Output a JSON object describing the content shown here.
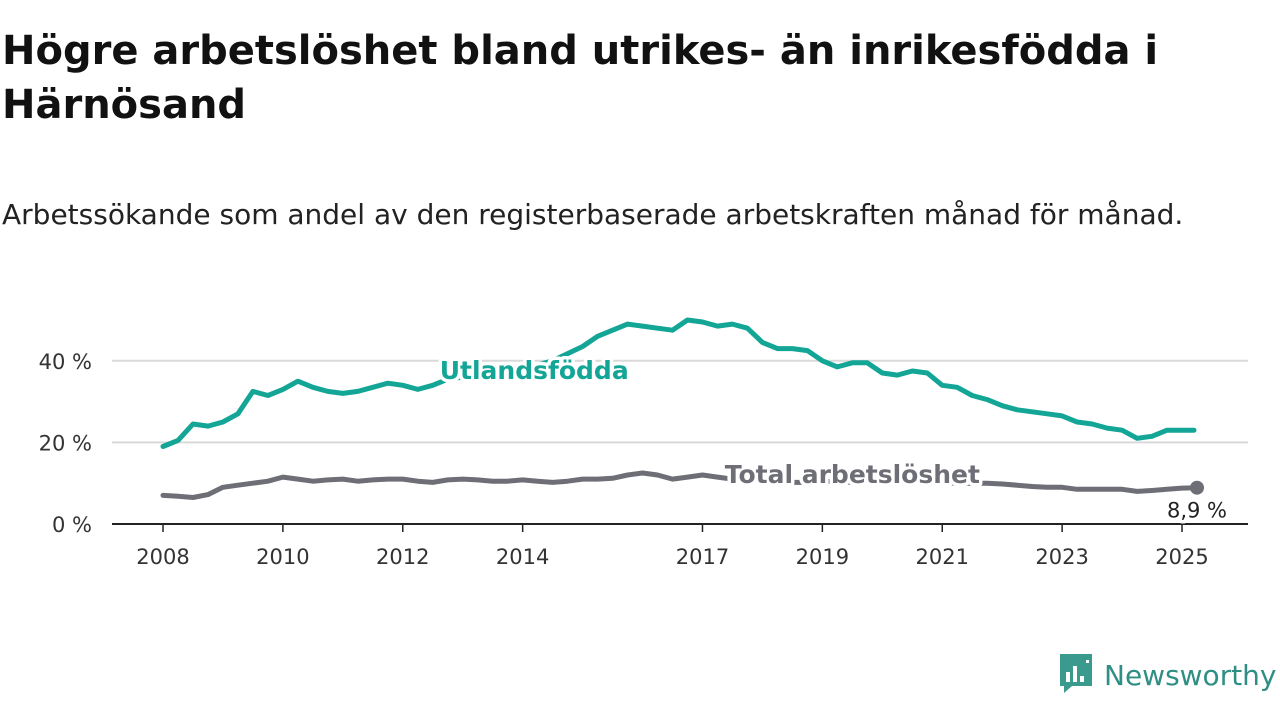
{
  "title": "Högre arbetslöshet bland utrikes- än inrikesfödda i Härnösand",
  "subtitle": "Arbetssökande som andel av den registerbaserade arbetskraften månad för månad.",
  "brand": {
    "name": "Newsworthy",
    "icon": "newsworthy-logo-icon",
    "color": "#3a9a8e"
  },
  "colors": {
    "foreign_born": "#13a596",
    "total": "#6e6e76",
    "grid": "#d9d9d9",
    "axis": "#222222"
  },
  "chart_data": {
    "type": "line",
    "title": "Högre arbetslöshet bland utrikes- än inrikesfödda i Härnösand",
    "subtitle": "Arbetssökande som andel av den registerbaserade arbetskraften månad för månad.",
    "xlabel": "",
    "ylabel": "",
    "x_range": [
      2008.0,
      2025.25
    ],
    "ylim": [
      0,
      50
    ],
    "y_ticks": [
      0,
      20,
      40
    ],
    "y_tick_labels": [
      "0 %",
      "20 %",
      "40 %"
    ],
    "x_ticks": [
      2008,
      2010,
      2012,
      2014,
      2017,
      2019,
      2021,
      2023,
      2025
    ],
    "x_tick_labels": [
      "2008",
      "2010",
      "2012",
      "2014",
      "2017",
      "2019",
      "2021",
      "2023",
      "2025"
    ],
    "grid": true,
    "legend": "inline labels",
    "series": [
      {
        "name": "Utlandsfödda",
        "color": "#13a596",
        "points": [
          [
            2008.0,
            19.0
          ],
          [
            2008.25,
            20.5
          ],
          [
            2008.5,
            24.5
          ],
          [
            2008.75,
            24.0
          ],
          [
            2009.0,
            25.0
          ],
          [
            2009.25,
            27.0
          ],
          [
            2009.5,
            32.5
          ],
          [
            2009.75,
            31.5
          ],
          [
            2010.0,
            33.0
          ],
          [
            2010.25,
            35.0
          ],
          [
            2010.5,
            33.5
          ],
          [
            2010.75,
            32.5
          ],
          [
            2011.0,
            32.0
          ],
          [
            2011.25,
            32.5
          ],
          [
            2011.5,
            33.5
          ],
          [
            2011.75,
            34.5
          ],
          [
            2012.0,
            34.0
          ],
          [
            2012.25,
            33.0
          ],
          [
            2012.5,
            34.0
          ],
          [
            2012.75,
            35.5
          ],
          [
            2013.0,
            36.0
          ],
          [
            2013.5,
            37.0
          ],
          [
            2014.0,
            38.0
          ],
          [
            2014.5,
            40.0
          ],
          [
            2015.0,
            43.5
          ],
          [
            2015.25,
            46.0
          ],
          [
            2015.5,
            47.5
          ],
          [
            2015.75,
            49.0
          ],
          [
            2016.0,
            48.5
          ],
          [
            2016.25,
            48.0
          ],
          [
            2016.5,
            47.5
          ],
          [
            2016.75,
            50.0
          ],
          [
            2017.0,
            49.5
          ],
          [
            2017.25,
            48.5
          ],
          [
            2017.5,
            49.0
          ],
          [
            2017.75,
            48.0
          ],
          [
            2018.0,
            44.5
          ],
          [
            2018.25,
            43.0
          ],
          [
            2018.5,
            43.0
          ],
          [
            2018.75,
            42.5
          ],
          [
            2019.0,
            40.0
          ],
          [
            2019.25,
            38.5
          ],
          [
            2019.5,
            39.5
          ],
          [
            2019.75,
            39.5
          ],
          [
            2020.0,
            37.0
          ],
          [
            2020.25,
            36.5
          ],
          [
            2020.5,
            37.5
          ],
          [
            2020.75,
            37.0
          ],
          [
            2021.0,
            34.0
          ],
          [
            2021.25,
            33.5
          ],
          [
            2021.5,
            31.5
          ],
          [
            2021.75,
            30.5
          ],
          [
            2022.0,
            29.0
          ],
          [
            2022.25,
            28.0
          ],
          [
            2022.5,
            27.5
          ],
          [
            2022.75,
            27.0
          ],
          [
            2023.0,
            26.5
          ],
          [
            2023.25,
            25.0
          ],
          [
            2023.5,
            24.5
          ],
          [
            2023.75,
            23.5
          ],
          [
            2024.0,
            23.0
          ],
          [
            2024.25,
            21.0
          ],
          [
            2024.5,
            21.5
          ],
          [
            2024.75,
            23.0
          ],
          [
            2025.0,
            23.0
          ],
          [
            2025.2,
            23.0
          ]
        ]
      },
      {
        "name": "Total arbetslöshet",
        "color": "#6e6e76",
        "points": [
          [
            2008.0,
            7.0
          ],
          [
            2008.25,
            6.8
          ],
          [
            2008.5,
            6.5
          ],
          [
            2008.75,
            7.2
          ],
          [
            2009.0,
            9.0
          ],
          [
            2009.25,
            9.5
          ],
          [
            2009.5,
            10.0
          ],
          [
            2009.75,
            10.5
          ],
          [
            2010.0,
            11.5
          ],
          [
            2010.25,
            11.0
          ],
          [
            2010.5,
            10.5
          ],
          [
            2010.75,
            10.8
          ],
          [
            2011.0,
            11.0
          ],
          [
            2011.25,
            10.5
          ],
          [
            2011.5,
            10.8
          ],
          [
            2011.75,
            11.0
          ],
          [
            2012.0,
            11.0
          ],
          [
            2012.25,
            10.5
          ],
          [
            2012.5,
            10.2
          ],
          [
            2012.75,
            10.8
          ],
          [
            2013.0,
            11.0
          ],
          [
            2013.25,
            10.8
          ],
          [
            2013.5,
            10.5
          ],
          [
            2013.75,
            10.5
          ],
          [
            2014.0,
            10.8
          ],
          [
            2014.25,
            10.5
          ],
          [
            2014.5,
            10.2
          ],
          [
            2014.75,
            10.5
          ],
          [
            2015.0,
            11.0
          ],
          [
            2015.25,
            11.0
          ],
          [
            2015.5,
            11.2
          ],
          [
            2015.75,
            12.0
          ],
          [
            2016.0,
            12.5
          ],
          [
            2016.25,
            12.0
          ],
          [
            2016.5,
            11.0
          ],
          [
            2016.75,
            11.5
          ],
          [
            2017.0,
            12.0
          ],
          [
            2017.25,
            11.5
          ],
          [
            2017.5,
            11.0
          ],
          [
            2017.75,
            10.8
          ],
          [
            2018.0,
            10.5
          ],
          [
            2018.25,
            10.5
          ],
          [
            2018.5,
            10.2
          ],
          [
            2018.75,
            10.2
          ],
          [
            2019.0,
            10.5
          ],
          [
            2019.25,
            10.5
          ],
          [
            2019.5,
            10.2
          ],
          [
            2019.75,
            10.5
          ],
          [
            2020.0,
            10.5
          ],
          [
            2020.25,
            10.2
          ],
          [
            2020.5,
            10.5
          ],
          [
            2020.75,
            10.5
          ],
          [
            2021.0,
            10.2
          ],
          [
            2021.25,
            10.0
          ],
          [
            2021.5,
            10.0
          ],
          [
            2021.75,
            10.0
          ],
          [
            2022.0,
            9.8
          ],
          [
            2022.25,
            9.5
          ],
          [
            2022.5,
            9.2
          ],
          [
            2022.75,
            9.0
          ],
          [
            2023.0,
            9.0
          ],
          [
            2023.25,
            8.5
          ],
          [
            2023.5,
            8.5
          ],
          [
            2023.75,
            8.5
          ],
          [
            2024.0,
            8.5
          ],
          [
            2024.25,
            8.0
          ],
          [
            2024.5,
            8.2
          ],
          [
            2024.75,
            8.5
          ],
          [
            2025.0,
            8.8
          ],
          [
            2025.25,
            8.9
          ]
        ]
      }
    ],
    "annotations": [
      {
        "text": "Utlandsfödda",
        "series": "Utlandsfödda",
        "x": 2012.75,
        "y": 36.0
      },
      {
        "text": "Total arbetslöshet",
        "series": "Total arbetslöshet",
        "x": 2019.5,
        "y": 10.5
      },
      {
        "text": "8,9 %",
        "series": "Total arbetslöshet",
        "x": 2025.25,
        "y": 8.9
      }
    ]
  }
}
